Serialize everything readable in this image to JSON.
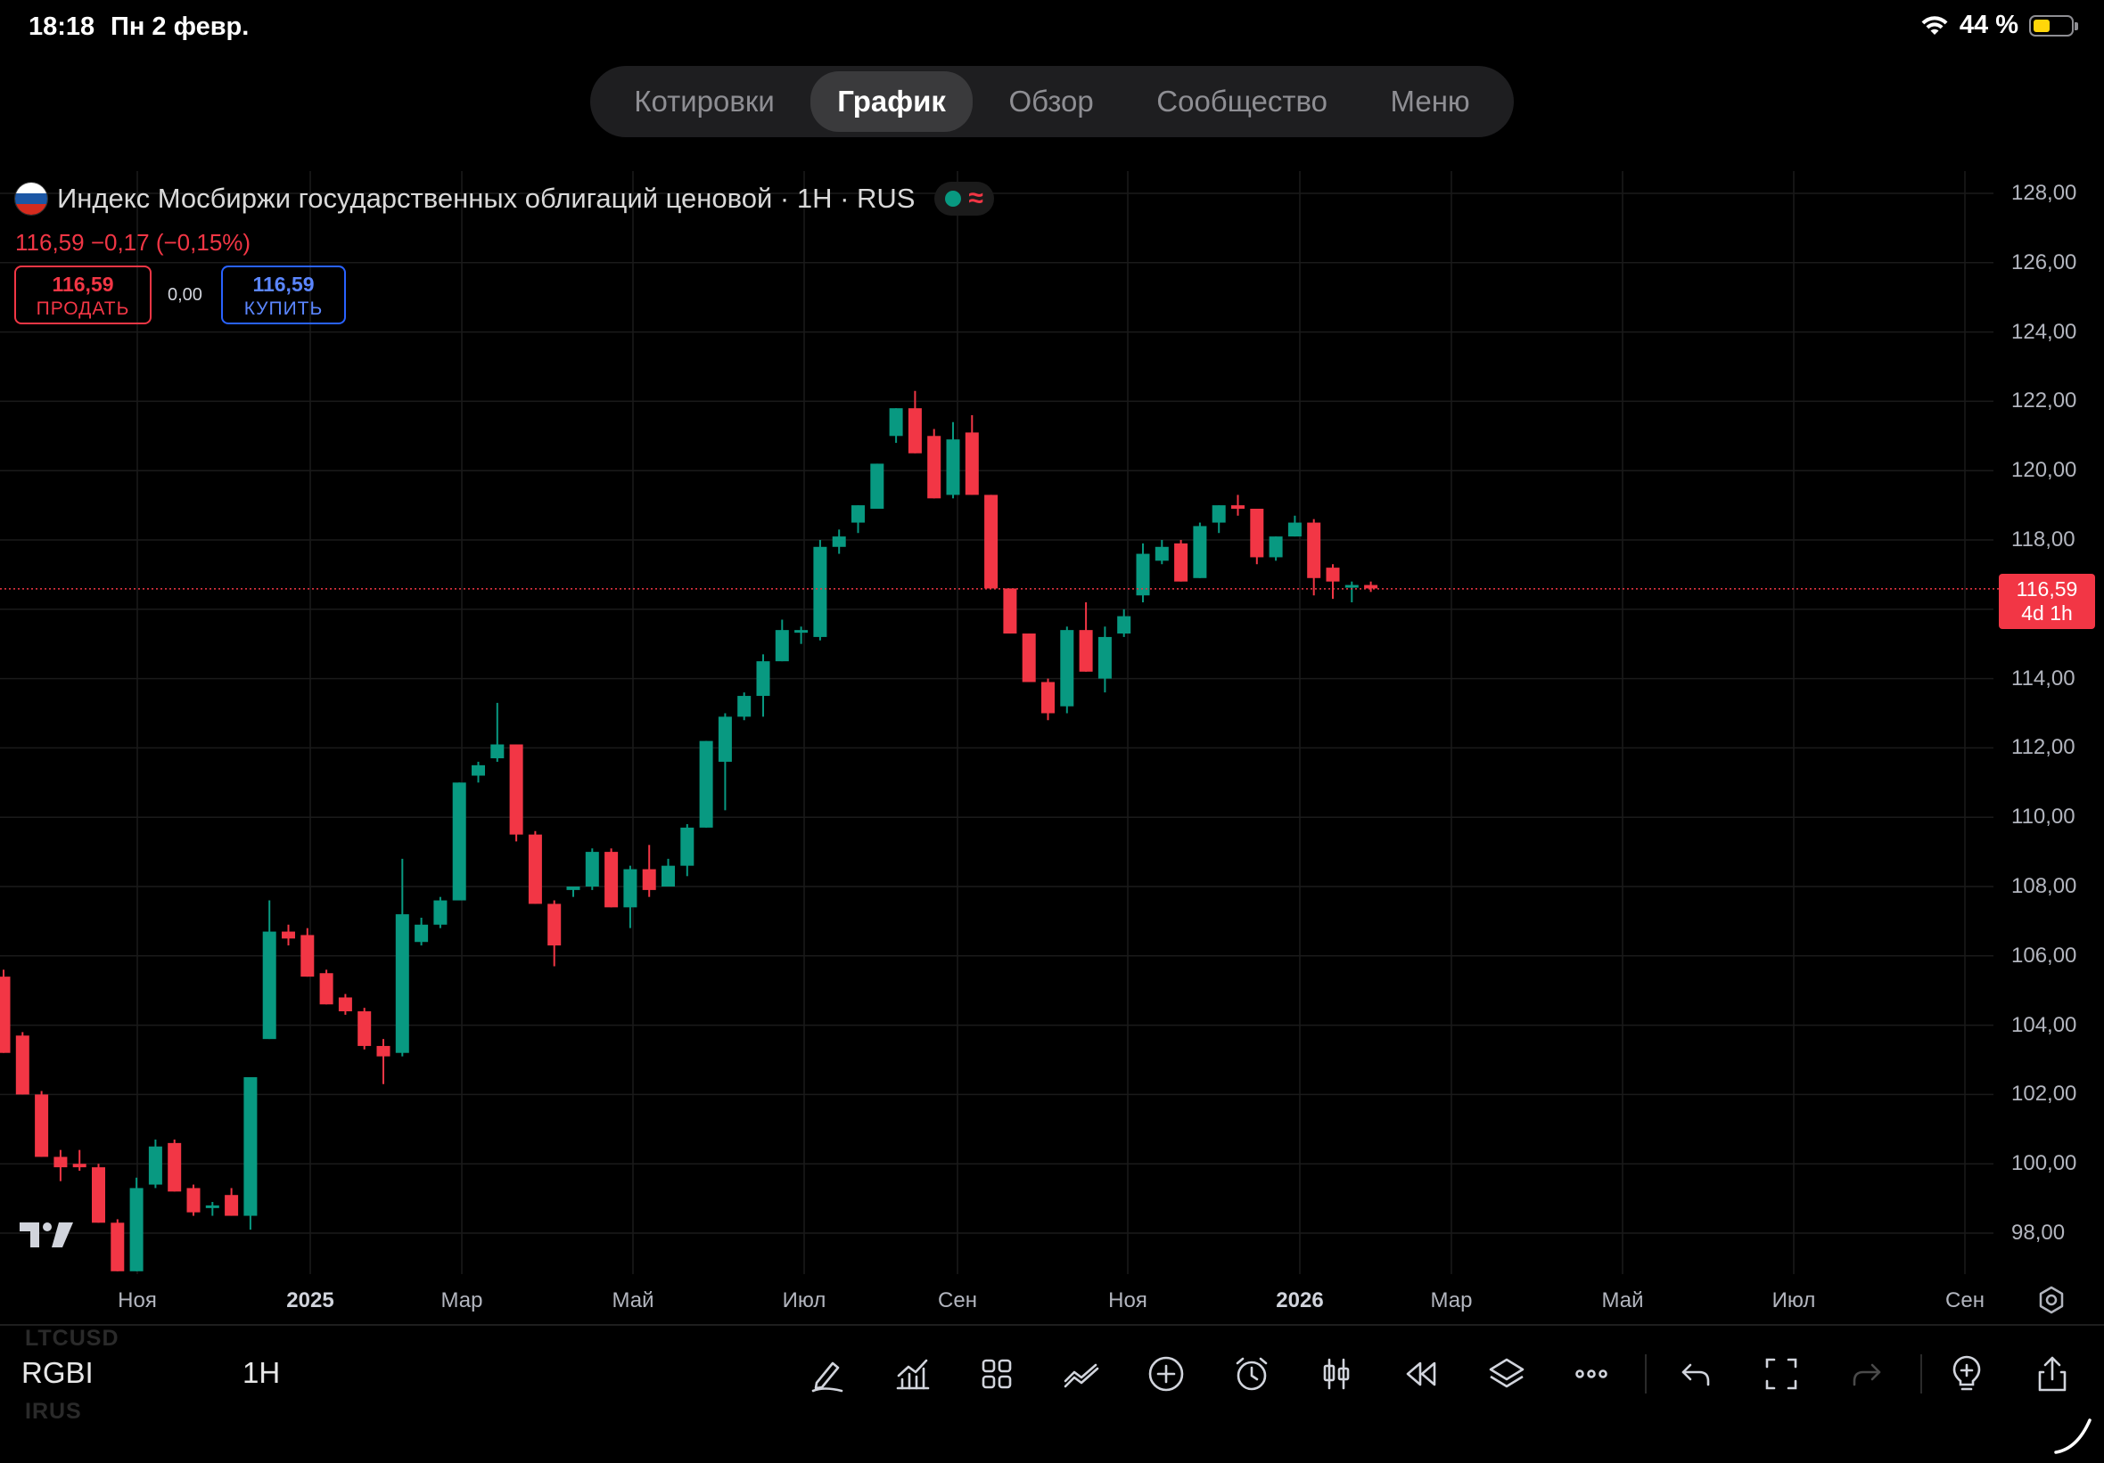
{
  "status_bar": {
    "time": "18:18",
    "date": "Пн 2 февр.",
    "battery": "44 %",
    "battery_level": 0.44
  },
  "tabs": [
    "Котировки",
    "График",
    "Обзор",
    "Сообщество",
    "Меню"
  ],
  "active_tab": "График",
  "legend": {
    "title": "Индекс Мосбиржи государственных облигаций ценовой · 1H · RUS",
    "live_wave": "≈",
    "quote": "116,59  −0,17 (−0,15%)"
  },
  "trade": {
    "sell_price": "116,59",
    "sell_label": "ПРОДАТЬ",
    "spread": "0,00",
    "buy_price": "116,59",
    "buy_label": "КУПИТЬ"
  },
  "price_tag": {
    "price": "116,59",
    "countdown": "4d 1h"
  },
  "bottom": {
    "ghost_top": "LTCUSD",
    "symbol": "RGBI",
    "ghost_bottom": "IRUS",
    "interval": "1H"
  },
  "chart_data": {
    "type": "candlestick",
    "colors": {
      "up": "#089981",
      "down": "#f23645",
      "background": "#000000",
      "grid": "#1a1a1a"
    },
    "ylim": [
      97,
      128.6
    ],
    "y_ticks": [
      "128,00",
      "126,00",
      "124,00",
      "122,00",
      "120,00",
      "118,00",
      "116,00",
      "114,00",
      "112,00",
      "110,00",
      "108,00",
      "106,00",
      "104,00",
      "102,00",
      "100,00",
      "98,00"
    ],
    "x_ticks": [
      {
        "label": "Ноя",
        "bold": false
      },
      {
        "label": "2025",
        "bold": true
      },
      {
        "label": "Мар",
        "bold": false
      },
      {
        "label": "Май",
        "bold": false
      },
      {
        "label": "Июл",
        "bold": false
      },
      {
        "label": "Сен",
        "bold": false
      },
      {
        "label": "Ноя",
        "bold": false
      },
      {
        "label": "2026",
        "bold": true
      },
      {
        "label": "Мар",
        "bold": false
      },
      {
        "label": "Май",
        "bold": false
      },
      {
        "label": "Июл",
        "bold": false
      },
      {
        "label": "Сен",
        "bold": false
      }
    ],
    "last_price": 116.59,
    "candles": [
      {
        "o": 105.4,
        "h": 105.6,
        "l": 103.2,
        "c": 103.2
      },
      {
        "o": 103.7,
        "h": 103.8,
        "l": 102.0,
        "c": 102.0
      },
      {
        "o": 102.0,
        "h": 102.1,
        "l": 100.2,
        "c": 100.2
      },
      {
        "o": 100.2,
        "h": 100.4,
        "l": 99.5,
        "c": 99.9
      },
      {
        "o": 100.0,
        "h": 100.4,
        "l": 99.8,
        "c": 99.9
      },
      {
        "o": 99.9,
        "h": 100.0,
        "l": 98.3,
        "c": 98.3
      },
      {
        "o": 98.3,
        "h": 98.4,
        "l": 96.9,
        "c": 96.9
      },
      {
        "o": 96.9,
        "h": 99.6,
        "l": 96.9,
        "c": 99.3
      },
      {
        "o": 99.4,
        "h": 100.7,
        "l": 99.3,
        "c": 100.5
      },
      {
        "o": 100.6,
        "h": 100.7,
        "l": 99.2,
        "c": 99.2
      },
      {
        "o": 99.3,
        "h": 99.4,
        "l": 98.5,
        "c": 98.6
      },
      {
        "o": 98.8,
        "h": 98.9,
        "l": 98.5,
        "c": 98.8
      },
      {
        "o": 99.1,
        "h": 99.3,
        "l": 98.5,
        "c": 98.5
      },
      {
        "o": 98.5,
        "h": 102.5,
        "l": 98.1,
        "c": 102.5
      },
      {
        "o": 103.6,
        "h": 107.6,
        "l": 103.6,
        "c": 106.7
      },
      {
        "o": 106.7,
        "h": 106.9,
        "l": 106.3,
        "c": 106.5
      },
      {
        "o": 106.6,
        "h": 106.8,
        "l": 105.4,
        "c": 105.4
      },
      {
        "o": 105.5,
        "h": 105.6,
        "l": 104.6,
        "c": 104.6
      },
      {
        "o": 104.8,
        "h": 104.9,
        "l": 104.3,
        "c": 104.4
      },
      {
        "o": 104.4,
        "h": 104.5,
        "l": 103.3,
        "c": 103.4
      },
      {
        "o": 103.4,
        "h": 103.6,
        "l": 102.3,
        "c": 103.1
      },
      {
        "o": 103.2,
        "h": 108.8,
        "l": 103.1,
        "c": 107.2
      },
      {
        "o": 106.4,
        "h": 107.1,
        "l": 106.3,
        "c": 106.9
      },
      {
        "o": 106.9,
        "h": 107.7,
        "l": 106.8,
        "c": 107.6
      },
      {
        "o": 107.6,
        "h": 111.0,
        "l": 107.6,
        "c": 111.0
      },
      {
        "o": 111.2,
        "h": 111.6,
        "l": 111.0,
        "c": 111.5
      },
      {
        "o": 111.7,
        "h": 113.3,
        "l": 111.6,
        "c": 112.1
      },
      {
        "o": 112.1,
        "h": 112.1,
        "l": 109.3,
        "c": 109.5
      },
      {
        "o": 109.5,
        "h": 109.6,
        "l": 107.5,
        "c": 107.5
      },
      {
        "o": 107.5,
        "h": 107.6,
        "l": 105.7,
        "c": 106.3
      },
      {
        "o": 107.9,
        "h": 108.0,
        "l": 107.7,
        "c": 108.0
      },
      {
        "o": 108.0,
        "h": 109.1,
        "l": 107.9,
        "c": 109.0
      },
      {
        "o": 109.0,
        "h": 109.1,
        "l": 107.4,
        "c": 107.4
      },
      {
        "o": 107.4,
        "h": 108.6,
        "l": 106.8,
        "c": 108.5
      },
      {
        "o": 108.5,
        "h": 109.2,
        "l": 107.7,
        "c": 107.9
      },
      {
        "o": 108.0,
        "h": 108.8,
        "l": 108.0,
        "c": 108.6
      },
      {
        "o": 108.6,
        "h": 109.8,
        "l": 108.3,
        "c": 109.7
      },
      {
        "o": 109.7,
        "h": 112.2,
        "l": 109.7,
        "c": 112.2
      },
      {
        "o": 111.6,
        "h": 113.0,
        "l": 110.2,
        "c": 112.9
      },
      {
        "o": 112.9,
        "h": 113.6,
        "l": 112.8,
        "c": 113.5
      },
      {
        "o": 113.5,
        "h": 114.7,
        "l": 112.9,
        "c": 114.5
      },
      {
        "o": 114.5,
        "h": 115.7,
        "l": 114.5,
        "c": 115.4
      },
      {
        "o": 115.4,
        "h": 115.5,
        "l": 115.0,
        "c": 115.4
      },
      {
        "o": 115.2,
        "h": 118.0,
        "l": 115.1,
        "c": 117.8
      },
      {
        "o": 117.8,
        "h": 118.3,
        "l": 117.6,
        "c": 118.1
      },
      {
        "o": 118.5,
        "h": 119.0,
        "l": 118.2,
        "c": 119.0
      },
      {
        "o": 118.9,
        "h": 120.2,
        "l": 118.9,
        "c": 120.2
      },
      {
        "o": 121.0,
        "h": 121.8,
        "l": 120.8,
        "c": 121.8
      },
      {
        "o": 121.8,
        "h": 122.3,
        "l": 120.5,
        "c": 120.5
      },
      {
        "o": 121.0,
        "h": 121.2,
        "l": 119.2,
        "c": 119.2
      },
      {
        "o": 119.3,
        "h": 121.4,
        "l": 119.2,
        "c": 120.9
      },
      {
        "o": 121.1,
        "h": 121.6,
        "l": 119.3,
        "c": 119.3
      },
      {
        "o": 119.3,
        "h": 119.3,
        "l": 116.6,
        "c": 116.6
      },
      {
        "o": 116.6,
        "h": 116.6,
        "l": 115.3,
        "c": 115.3
      },
      {
        "o": 115.3,
        "h": 115.3,
        "l": 113.9,
        "c": 113.9
      },
      {
        "o": 113.9,
        "h": 114.0,
        "l": 112.8,
        "c": 113.0
      },
      {
        "o": 113.2,
        "h": 115.5,
        "l": 113.0,
        "c": 115.4
      },
      {
        "o": 115.4,
        "h": 116.2,
        "l": 114.2,
        "c": 114.2
      },
      {
        "o": 114.0,
        "h": 115.5,
        "l": 113.6,
        "c": 115.2
      },
      {
        "o": 115.3,
        "h": 116.0,
        "l": 115.2,
        "c": 115.8
      },
      {
        "o": 116.4,
        "h": 117.9,
        "l": 116.2,
        "c": 117.6
      },
      {
        "o": 117.4,
        "h": 118.0,
        "l": 117.3,
        "c": 117.8
      },
      {
        "o": 117.9,
        "h": 118.0,
        "l": 116.8,
        "c": 116.8
      },
      {
        "o": 116.9,
        "h": 118.5,
        "l": 116.9,
        "c": 118.4
      },
      {
        "o": 118.5,
        "h": 119.0,
        "l": 118.2,
        "c": 119.0
      },
      {
        "o": 119.0,
        "h": 119.3,
        "l": 118.7,
        "c": 118.9
      },
      {
        "o": 118.9,
        "h": 118.9,
        "l": 117.3,
        "c": 117.5
      },
      {
        "o": 117.5,
        "h": 118.1,
        "l": 117.4,
        "c": 118.1
      },
      {
        "o": 118.1,
        "h": 118.7,
        "l": 118.1,
        "c": 118.5
      },
      {
        "o": 118.5,
        "h": 118.6,
        "l": 116.4,
        "c": 116.9
      },
      {
        "o": 117.2,
        "h": 117.3,
        "l": 116.3,
        "c": 116.8
      },
      {
        "o": 116.7,
        "h": 116.8,
        "l": 116.2,
        "c": 116.7
      },
      {
        "o": 116.7,
        "h": 116.8,
        "l": 116.5,
        "c": 116.6
      }
    ]
  }
}
